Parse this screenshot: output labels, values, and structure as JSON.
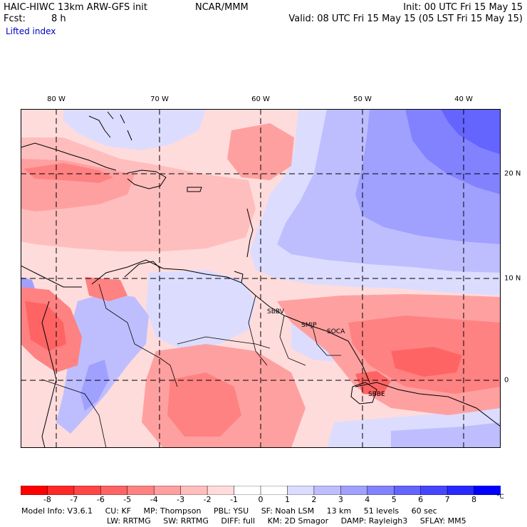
{
  "header": {
    "model": "HAIC-HIWC 13km ARW-GFS init",
    "org": "NCAR/MMM",
    "init": "Init: 00 UTC Fri 15 May 15",
    "fcst_label": "Fcst:",
    "fcst_value": "8 h",
    "valid": "Valid: 08 UTC Fri 15 May 15 (05 LST Fri 15 May 15)",
    "field": "Lifted index"
  },
  "map": {
    "lon_labels": [
      "80 W",
      "70 W",
      "60 W",
      "50 W",
      "40 W"
    ],
    "lat_labels": [
      "20 N",
      "10 N",
      "0"
    ],
    "stations": [
      "SBBV",
      "SMJP",
      "SOCA",
      "SBBE"
    ],
    "colors": {
      "neg8": "#ff0000",
      "neg7": "#ff2828",
      "neg6": "#ff4646",
      "neg5": "#ff6464",
      "neg4": "#ff8282",
      "neg3": "#ffa0a0",
      "neg2": "#ffbebe",
      "neg1": "#ffdcdc",
      "zero": "#ffffff",
      "pos1": "#dcdcff",
      "pos2": "#bebeff",
      "pos3": "#a0a0ff",
      "pos4": "#8282ff",
      "pos5": "#6464ff",
      "pos6": "#4646ff",
      "pos7": "#2828ff",
      "pos8": "#0000ff",
      "station": "#ff00ff"
    }
  },
  "colorbar": {
    "ticks": [
      "-8",
      "-7",
      "-6",
      "-5",
      "-4",
      "-3",
      "-2",
      "-1",
      "0",
      "1",
      "2",
      "3",
      "4",
      "5",
      "6",
      "7",
      "8"
    ],
    "unit": "°C"
  },
  "footer": {
    "line1": [
      "Model Info: V3.6.1",
      "CU: KF",
      "MP: Thompson",
      "PBL: YSU",
      "SF: Noah LSM",
      "13 km",
      "51 levels",
      "60 sec"
    ],
    "line2": [
      "LW: RRTMG",
      "SW: RRTMG",
      "DIFF: full",
      "KM: 2D Smagor",
      "DAMP: Rayleigh3",
      "SFLAY: MM5"
    ]
  }
}
